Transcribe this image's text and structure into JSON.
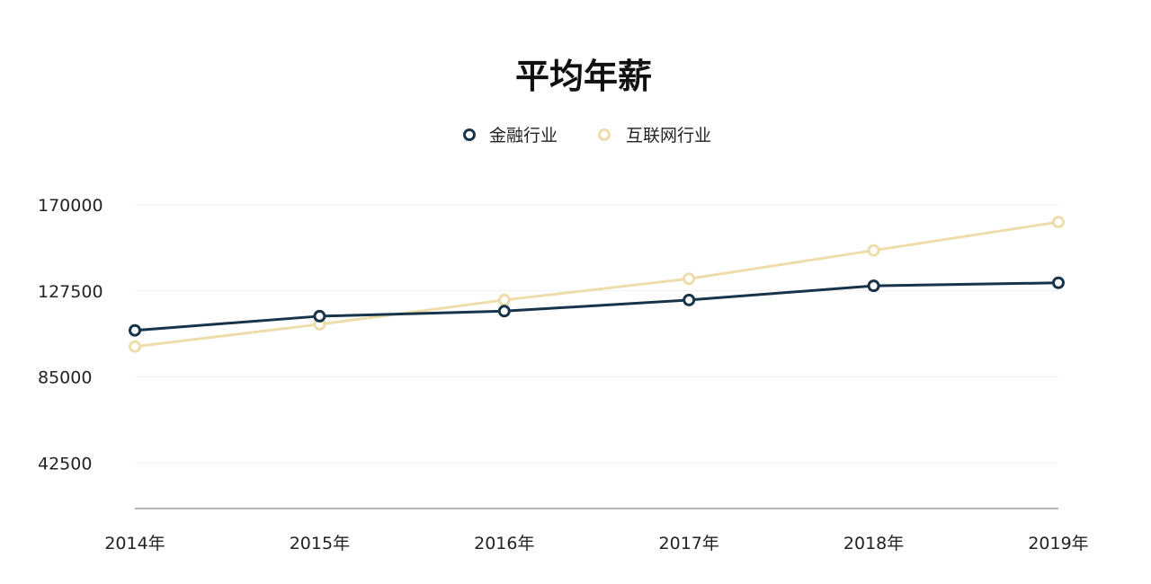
{
  "chart_data": {
    "type": "line",
    "title": "平均年薪",
    "xlabel": "",
    "ylabel": "",
    "categories": [
      "2014年",
      "2015年",
      "2016年",
      "2017年",
      "2018年",
      "2019年"
    ],
    "y_ticks": [
      "42500",
      "85000",
      "127500",
      "170000"
    ],
    "ylim": [
      20000,
      170000
    ],
    "grid": true,
    "legend_position": "top-center",
    "series": [
      {
        "name": "金融行业",
        "color": "#17344a",
        "values": [
          108000,
          115000,
          117500,
          123000,
          130000,
          131500
        ]
      },
      {
        "name": "互联网行业",
        "color": "#efdcab",
        "values": [
          100000,
          111000,
          123000,
          133500,
          147500,
          161500
        ]
      }
    ]
  }
}
